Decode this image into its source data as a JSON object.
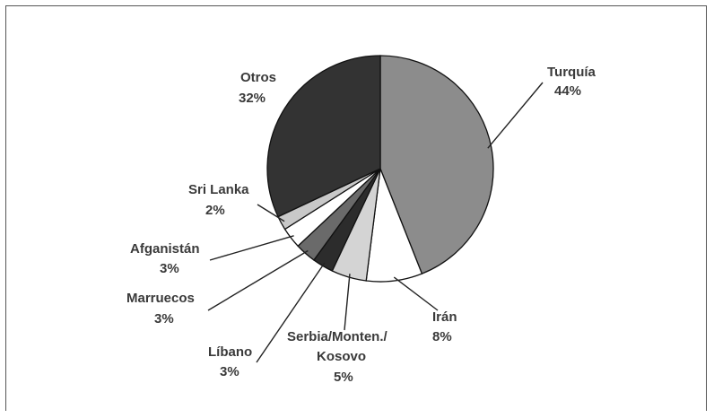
{
  "chart_data": {
    "type": "pie",
    "title": "",
    "slices": [
      {
        "label": "Turquía",
        "value": 44,
        "pct": "44%",
        "color": "#8c8c8c"
      },
      {
        "label": "Irán",
        "value": 8,
        "pct": "8%",
        "color": "#ffffff"
      },
      {
        "label": "Serbia/Monten./ Kosovo",
        "value": 5,
        "pct": "5%",
        "color": "#d4d4d4"
      },
      {
        "label": "Líbano",
        "value": 3,
        "pct": "3%",
        "color": "#2c2c2c"
      },
      {
        "label": "Marruecos",
        "value": 3,
        "pct": "3%",
        "color": "#6a6a6a"
      },
      {
        "label": "Afganistán",
        "value": 3,
        "pct": "3%",
        "color": "#ffffff"
      },
      {
        "label": "Sri Lanka",
        "value": 2,
        "pct": "2%",
        "color": "#c8c8c8"
      },
      {
        "label": "Otros",
        "value": 32,
        "pct": "32%",
        "color": "#333333"
      }
    ]
  }
}
